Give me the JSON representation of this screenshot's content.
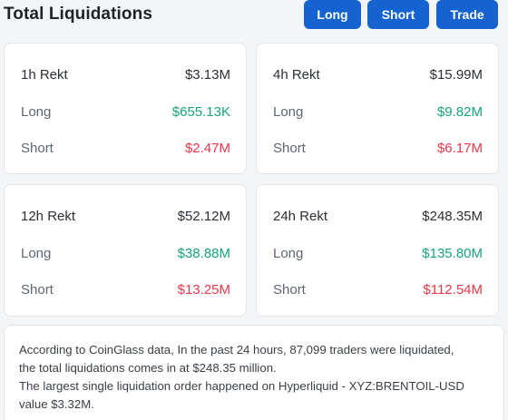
{
  "header": {
    "title": "Total Liquidations",
    "buttons": {
      "long": "Long",
      "short": "Short",
      "trade": "Trade"
    }
  },
  "cards": [
    {
      "period": "1h Rekt",
      "total": "$3.13M",
      "long_label": "Long",
      "long": "$655.13K",
      "short_label": "Short",
      "short": "$2.47M"
    },
    {
      "period": "4h Rekt",
      "total": "$15.99M",
      "long_label": "Long",
      "long": "$9.82M",
      "short_label": "Short",
      "short": "$6.17M"
    },
    {
      "period": "12h Rekt",
      "total": "$52.12M",
      "long_label": "Long",
      "long": "$38.88M",
      "short_label": "Short",
      "short": "$13.25M"
    },
    {
      "period": "24h Rekt",
      "total": "$248.35M",
      "long_label": "Long",
      "long": "$135.80M",
      "short_label": "Short",
      "short": "$112.54M"
    }
  ],
  "colors": {
    "accent": "#1463d0",
    "long": "#16a37f",
    "short": "#e5384b"
  },
  "info": {
    "line1": "According to CoinGlass data, In the past 24 hours, 87,099 traders were liquidated,",
    "line2": "the total liquidations comes in at $248.35 million.",
    "line3": "The largest single liquidation order happened on Hyperliquid - XYZ:BRENTOIL-USD",
    "line4": "value $3.32M."
  }
}
